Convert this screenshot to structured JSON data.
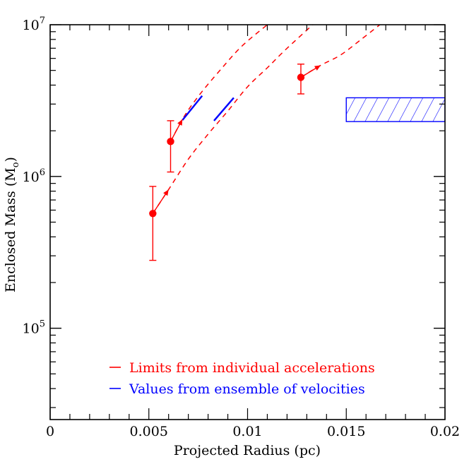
{
  "chart_data": {
    "type": "scatter",
    "xlabel": "Projected Radius (pc)",
    "ylabel": "Enclosed Mass (M",
    "ylabel_sub": "o",
    "ylabel_close": ")",
    "x_scale": "linear",
    "y_scale": "log",
    "xlim": [
      0,
      0.02
    ],
    "ylim": [
      25000,
      10000000
    ],
    "x_ticks": [
      {
        "value": 0,
        "label": "0"
      },
      {
        "value": 0.005,
        "label": "0.005"
      },
      {
        "value": 0.01,
        "label": "0.01"
      },
      {
        "value": 0.015,
        "label": "0.015"
      },
      {
        "value": 0.02,
        "label": "0.02"
      }
    ],
    "y_ticks": [
      {
        "value": 100000,
        "base": "10",
        "exp": "5"
      },
      {
        "value": 1000000,
        "base": "10",
        "exp": "6"
      },
      {
        "value": 10000000,
        "base": "10",
        "exp": "7"
      }
    ],
    "grid": false,
    "legend_position": "bottom-center",
    "legend": [
      {
        "label": "Limits from individual accelerations",
        "color": "#ff0000"
      },
      {
        "label": "Values from ensemble of velocities",
        "color": "#0000ff"
      }
    ],
    "series": [
      {
        "kind": "points_with_error_bars",
        "color": "#ff0000",
        "points": [
          {
            "x": 0.0052,
            "y": 570000,
            "ylow": 280000,
            "yhigh": 860000
          },
          {
            "x": 0.0061,
            "y": 1700000,
            "ylow": 1070000,
            "yhigh": 2330000
          },
          {
            "x": 0.0127,
            "y": 4500000,
            "ylow": 3500000,
            "yhigh": 5500000
          }
        ]
      },
      {
        "kind": "arrows",
        "color": "#ff0000",
        "arrows": [
          {
            "from": [
              0.0052,
              570000
            ],
            "to": [
              0.006,
              820000
            ]
          },
          {
            "from": [
              0.0061,
              1700000
            ],
            "to": [
              0.0067,
              2380000
            ]
          },
          {
            "from": [
              0.0127,
              4500000
            ],
            "to": [
              0.0137,
              5400000
            ]
          }
        ]
      },
      {
        "kind": "dashed_curves",
        "color": "#ff0000",
        "curves": [
          [
            [
              0.0061,
              1700000
            ],
            [
              0.0068,
              2500000
            ],
            [
              0.0076,
              3500000
            ],
            [
              0.0086,
              5000000
            ],
            [
              0.0097,
              7200000
            ],
            [
              0.011,
              10000000
            ]
          ],
          [
            [
              0.0052,
              570000
            ],
            [
              0.006,
              820000
            ],
            [
              0.007,
              1300000
            ],
            [
              0.008,
              1900000
            ],
            [
              0.009,
              2700000
            ],
            [
              0.01,
              3900000
            ],
            [
              0.011,
              5200000
            ],
            [
              0.0119,
              6800000
            ],
            [
              0.0133,
              10000000
            ]
          ],
          [
            [
              0.0127,
              4500000
            ],
            [
              0.0137,
              5400000
            ],
            [
              0.0147,
              6300000
            ],
            [
              0.0157,
              7900000
            ],
            [
              0.0167,
              10000000
            ]
          ]
        ]
      },
      {
        "kind": "solid_segments",
        "color": "#0000ff",
        "segments": [
          [
            [
              0.0067,
              2350000
            ],
            [
              0.0077,
              3400000
            ]
          ],
          [
            [
              0.0083,
              2330000
            ],
            [
              0.0093,
              3300000
            ]
          ]
        ]
      },
      {
        "kind": "hatched_band",
        "color": "#0000ff",
        "x": [
          0.015,
          0.02
        ],
        "y": [
          2300000,
          3300000
        ]
      }
    ]
  }
}
